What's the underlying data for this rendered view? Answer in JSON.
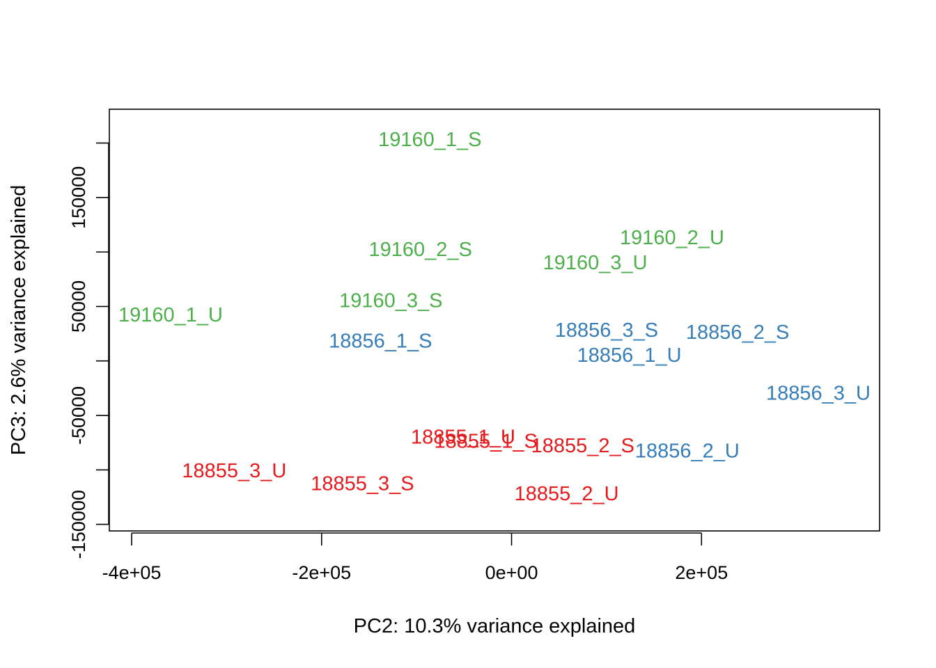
{
  "chart_data": {
    "type": "scatter",
    "title": "",
    "xlabel": "PC2: 10.3% variance explained",
    "ylabel": "PC3: 2.6% variance explained",
    "xlim": [
      -423500,
      387500
    ],
    "ylim": [
      -156000,
      231000
    ],
    "x_ticks": [
      {
        "value": -400000,
        "label": "-4e+05"
      },
      {
        "value": -200000,
        "label": "-2e+05"
      },
      {
        "value": 0,
        "label": "0e+00"
      },
      {
        "value": 200000,
        "label": "2e+05"
      }
    ],
    "y_ticks": [
      {
        "value": -150000,
        "label": "-150000"
      },
      {
        "value": -100000,
        "label": ""
      },
      {
        "value": -50000,
        "label": "-50000"
      },
      {
        "value": 0,
        "label": ""
      },
      {
        "value": 50000,
        "label": "50000"
      },
      {
        "value": 100000,
        "label": ""
      },
      {
        "value": 150000,
        "label": "150000"
      },
      {
        "value": 200000,
        "label": ""
      }
    ],
    "grid": false,
    "legend": "none",
    "colors": {
      "19160": "#4daf4a",
      "18856": "#377eb8",
      "18855": "#e41a1c"
    },
    "points": [
      {
        "label": "19160_1_S",
        "x": -86000,
        "y": 203000,
        "group": "19160"
      },
      {
        "label": "19160_2_S",
        "x": -96000,
        "y": 102000,
        "group": "19160"
      },
      {
        "label": "19160_3_S",
        "x": -127000,
        "y": 55000,
        "group": "19160"
      },
      {
        "label": "19160_1_U",
        "x": -359000,
        "y": 42000,
        "group": "19160"
      },
      {
        "label": "19160_2_U",
        "x": 169000,
        "y": 113000,
        "group": "19160"
      },
      {
        "label": "19160_3_U",
        "x": 88000,
        "y": 90000,
        "group": "19160"
      },
      {
        "label": "18856_1_S",
        "x": -138000,
        "y": 18000,
        "group": "18856"
      },
      {
        "label": "18856_3_S",
        "x": 100000,
        "y": 28000,
        "group": "18856"
      },
      {
        "label": "18856_2_S",
        "x": 238000,
        "y": 26000,
        "group": "18856"
      },
      {
        "label": "18856_1_U",
        "x": 124000,
        "y": 5000,
        "group": "18856"
      },
      {
        "label": "18856_3_U",
        "x": 323000,
        "y": -30000,
        "group": "18856"
      },
      {
        "label": "18856_2_U",
        "x": 185000,
        "y": -83000,
        "group": "18856"
      },
      {
        "label": "18855_1_U",
        "x": -51000,
        "y": -70000,
        "group": "18855"
      },
      {
        "label": "18855_1_S",
        "x": -27000,
        "y": -74000,
        "group": "18855"
      },
      {
        "label": "18855_2_S",
        "x": 75000,
        "y": -78000,
        "group": "18855"
      },
      {
        "label": "18855_3_U",
        "x": -292000,
        "y": -101000,
        "group": "18855"
      },
      {
        "label": "18855_3_S",
        "x": -157000,
        "y": -113000,
        "group": "18855"
      },
      {
        "label": "18855_2_U",
        "x": 58000,
        "y": -122000,
        "group": "18855"
      }
    ]
  }
}
